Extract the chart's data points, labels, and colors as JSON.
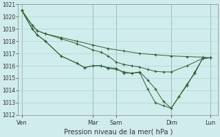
{
  "xlabel": "Pression niveau de la mer( hPa )",
  "ylim": [
    1012,
    1021
  ],
  "yticks": [
    1012,
    1013,
    1014,
    1015,
    1016,
    1017,
    1018,
    1019,
    1020,
    1021
  ],
  "background_color": "#d0ecec",
  "grid_color": "#b0d4d4",
  "line_color": "#2d6030",
  "xtick_labels": [
    "Ven",
    "Mar",
    "Sam",
    "Dim",
    "Lun"
  ],
  "xtick_positions": [
    0.0,
    0.375,
    0.5,
    0.792,
    1.0
  ],
  "vline_positions": [
    0.0,
    0.375,
    0.5,
    0.792,
    1.0
  ],
  "lines_x": [
    [
      0.0,
      0.055,
      0.083,
      0.125,
      0.208,
      0.292,
      0.375,
      0.458,
      0.542,
      0.625,
      0.708,
      0.792,
      0.875,
      0.958,
      1.0
    ],
    [
      0.0,
      0.055,
      0.083,
      0.125,
      0.208,
      0.292,
      0.375,
      0.42,
      0.458,
      0.5,
      0.542,
      0.583,
      0.625,
      0.667,
      0.708,
      0.75,
      0.792,
      0.875,
      0.958,
      1.0
    ],
    [
      0.0,
      0.055,
      0.083,
      0.125,
      0.208,
      0.292,
      0.333,
      0.375,
      0.42,
      0.458,
      0.5,
      0.542,
      0.583,
      0.625,
      0.667,
      0.708,
      0.75,
      0.792,
      0.833,
      0.875,
      0.917,
      0.958,
      1.0
    ],
    [
      0.0,
      0.055,
      0.083,
      0.125,
      0.208,
      0.292,
      0.333,
      0.375,
      0.42,
      0.458,
      0.5,
      0.542,
      0.583,
      0.625,
      0.667,
      0.708,
      0.75,
      0.792,
      0.833,
      0.875,
      0.917,
      0.958,
      1.0
    ]
  ],
  "lines_y": [
    [
      1020.5,
      1019.3,
      1018.85,
      1018.6,
      1018.3,
      1018.0,
      1017.7,
      1017.4,
      1017.2,
      1017.0,
      1016.9,
      1016.8,
      1016.75,
      1016.7,
      1016.65
    ],
    [
      1020.5,
      1019.3,
      1018.85,
      1018.6,
      1018.2,
      1017.8,
      1017.3,
      1017.1,
      1016.8,
      1016.3,
      1016.1,
      1016.0,
      1015.9,
      1015.7,
      1015.55,
      1015.5,
      1015.5,
      1016.0,
      1016.6,
      1016.65
    ],
    [
      1020.5,
      1019.0,
      1018.5,
      1018.0,
      1016.8,
      1016.2,
      1015.85,
      1016.0,
      1016.0,
      1015.85,
      1015.8,
      1015.4,
      1015.4,
      1015.5,
      1014.85,
      1014.1,
      1013.1,
      1012.55,
      1013.5,
      1014.5,
      1015.4,
      1016.6,
      1016.65
    ],
    [
      1020.5,
      1019.0,
      1018.5,
      1018.0,
      1016.8,
      1016.2,
      1015.85,
      1016.0,
      1016.0,
      1015.8,
      1015.7,
      1015.5,
      1015.4,
      1015.45,
      1014.1,
      1013.0,
      1012.75,
      1012.55,
      1013.5,
      1014.4,
      1015.5,
      1016.6,
      1016.65
    ]
  ]
}
